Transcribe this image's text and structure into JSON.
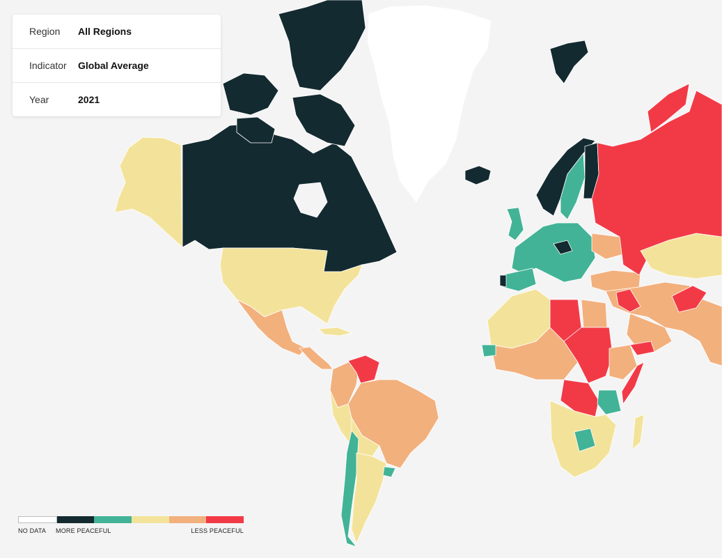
{
  "filters": {
    "region": {
      "label": "Region",
      "value": "All Regions"
    },
    "indicator": {
      "label": "Indicator",
      "value": "Global Average"
    },
    "year": {
      "label": "Year",
      "value": "2021"
    }
  },
  "legend": {
    "no_data_label": "NO DATA",
    "more_label": "MORE PEACEFUL",
    "less_label": "LESS PEACEFUL"
  },
  "colors": {
    "no_data": "#ffffff",
    "very_high": "#132a30",
    "high": "#42b396",
    "medium": "#f3e39a",
    "low": "#f2b07d",
    "very_low": "#f23a47",
    "ocean": "#f4f4f4"
  },
  "regions": [
    {
      "name": "Alaska",
      "level": "medium"
    },
    {
      "name": "Canada",
      "level": "very_high"
    },
    {
      "name": "Greenland",
      "level": "no_data"
    },
    {
      "name": "Iceland",
      "level": "very_high"
    },
    {
      "name": "United States",
      "level": "medium"
    },
    {
      "name": "Mexico",
      "level": "low"
    },
    {
      "name": "Central America",
      "level": "low"
    },
    {
      "name": "Venezuela",
      "level": "very_low"
    },
    {
      "name": "Brazil",
      "level": "low"
    },
    {
      "name": "Chile",
      "level": "high"
    },
    {
      "name": "Argentina",
      "level": "medium"
    },
    {
      "name": "Uruguay",
      "level": "high"
    },
    {
      "name": "Norway",
      "level": "very_high"
    },
    {
      "name": "Sweden",
      "level": "high"
    },
    {
      "name": "Finland",
      "level": "very_high"
    },
    {
      "name": "Western Europe",
      "level": "high"
    },
    {
      "name": "Russia",
      "level": "very_low"
    },
    {
      "name": "Ukraine",
      "level": "low"
    },
    {
      "name": "Kazakhstan",
      "level": "medium"
    },
    {
      "name": "Middle East",
      "level": "low"
    },
    {
      "name": "Afghanistan",
      "level": "very_low"
    },
    {
      "name": "Libya",
      "level": "very_low"
    },
    {
      "name": "Sudan",
      "level": "very_low"
    },
    {
      "name": "DR Congo",
      "level": "very_low"
    },
    {
      "name": "Zambia",
      "level": "high"
    }
  ]
}
